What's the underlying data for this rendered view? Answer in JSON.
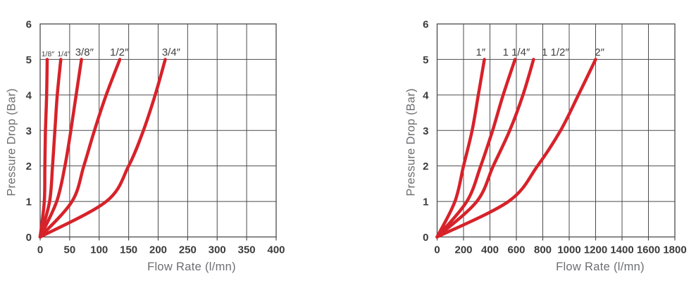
{
  "page": {
    "background": "#ffffff"
  },
  "colors": {
    "curve_red": "#d7222a",
    "grid": "#4c4c4e",
    "tick_text": "#3b3b3d",
    "axis_title_text": "#6d6e71",
    "series_label_text": "#414042"
  },
  "chart_data": [
    {
      "type": "line",
      "title": "",
      "xlabel": "Flow Rate (l/mn)",
      "ylabel": "Pressure Drop (Bar)",
      "xlim": [
        0,
        400
      ],
      "ylim": [
        0,
        6
      ],
      "xticks": [
        0,
        50,
        100,
        150,
        200,
        250,
        300,
        350,
        400
      ],
      "yticks": [
        0,
        1,
        2,
        3,
        4,
        5,
        6
      ],
      "grid": true,
      "legend_position": "labels-above-curves",
      "line_color": "#d7222a",
      "grid_color": "#4c4c4e",
      "pressure_levels": [
        0,
        1,
        2,
        3,
        4,
        5
      ],
      "series": [
        {
          "name": "1/8″",
          "label_x": 13,
          "small_label": true,
          "flows": [
            0,
            7,
            8,
            9,
            11,
            12
          ]
        },
        {
          "name": "1/4″",
          "label_x": 40,
          "small_label": true,
          "flows": [
            0,
            16,
            21,
            25,
            29,
            35
          ]
        },
        {
          "name": "3/8″",
          "label_x": 75,
          "small_label": false,
          "flows": [
            0,
            28,
            42,
            52,
            61,
            70
          ]
        },
        {
          "name": "1/2″",
          "label_x": 134,
          "small_label": false,
          "flows": [
            0,
            54,
            74,
            92,
            112,
            135
          ]
        },
        {
          "name": "3/4″",
          "label_x": 222,
          "small_label": false,
          "flows": [
            0,
            112,
            150,
            175,
            195,
            212
          ]
        }
      ]
    },
    {
      "type": "line",
      "title": "",
      "xlabel": "Flow Rate (l/mn)",
      "ylabel": "Pressure Drop (Bar)",
      "xlim": [
        0,
        1800
      ],
      "ylim": [
        0,
        6
      ],
      "xticks": [
        0,
        200,
        400,
        600,
        800,
        1000,
        1200,
        1400,
        1600,
        1800
      ],
      "yticks": [
        0,
        1,
        2,
        3,
        4,
        5,
        6
      ],
      "grid": true,
      "legend_position": "labels-above-curves",
      "line_color": "#d7222a",
      "grid_color": "#4c4c4e",
      "pressure_levels": [
        0,
        1,
        2,
        3,
        4,
        5
      ],
      "series": [
        {
          "name": "1″",
          "label_x": 330,
          "small_label": false,
          "flows": [
            0,
            135,
            200,
            265,
            312,
            358
          ]
        },
        {
          "name": "1 1/4″",
          "label_x": 600,
          "small_label": false,
          "flows": [
            0,
            225,
            330,
            420,
            500,
            590
          ]
        },
        {
          "name": "1 1/2″",
          "label_x": 895,
          "small_label": false,
          "flows": [
            0,
            300,
            425,
            550,
            650,
            730
          ]
        },
        {
          "name": "2″",
          "label_x": 1230,
          "small_label": false,
          "flows": [
            0,
            540,
            760,
            935,
            1070,
            1200
          ]
        }
      ]
    }
  ]
}
